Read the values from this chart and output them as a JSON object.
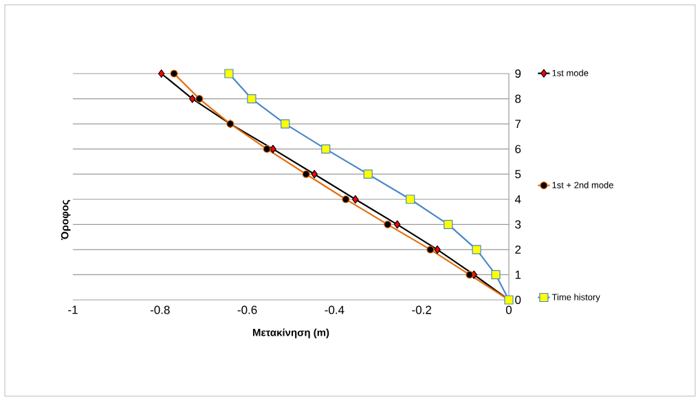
{
  "chart_data": {
    "type": "line",
    "xlabel": "Μετακίνηση (m)",
    "ylabel": "Όροφος",
    "series": [
      {
        "name": "1st mode",
        "color": "#000000",
        "marker": "diamond",
        "x": [
          0,
          -0.08,
          -0.164,
          -0.256,
          -0.352,
          -0.446,
          -0.541,
          -0.639,
          -0.726,
          -0.797
        ],
        "values": [
          0,
          1,
          2,
          3,
          4,
          5,
          6,
          7,
          8,
          9
        ]
      },
      {
        "name": "1st + 2nd mode",
        "color": "#e46c0a",
        "marker": "circle",
        "x": [
          0,
          -0.09,
          -0.18,
          -0.278,
          -0.374,
          -0.465,
          -0.555,
          -0.639,
          -0.71,
          -0.768
        ],
        "values": [
          0,
          1,
          2,
          3,
          4,
          5,
          6,
          7,
          8,
          9
        ]
      },
      {
        "name": "Time history",
        "color": "#4a86c8",
        "marker": "square",
        "x": [
          0,
          -0.03,
          -0.074,
          -0.139,
          -0.226,
          -0.323,
          -0.42,
          -0.513,
          -0.59,
          -0.642
        ],
        "values": [
          0,
          1,
          2,
          3,
          4,
          5,
          6,
          7,
          8,
          9
        ]
      }
    ],
    "xlim": [
      -1,
      0
    ],
    "xticks": [
      -1,
      -0.8,
      -0.6,
      -0.4,
      -0.2,
      0
    ],
    "ylim": [
      0,
      9
    ],
    "yticks": [
      0,
      1,
      2,
      3,
      4,
      5,
      6,
      7,
      8,
      9
    ],
    "grid": "y",
    "legend": "right",
    "line_style": "solid"
  }
}
